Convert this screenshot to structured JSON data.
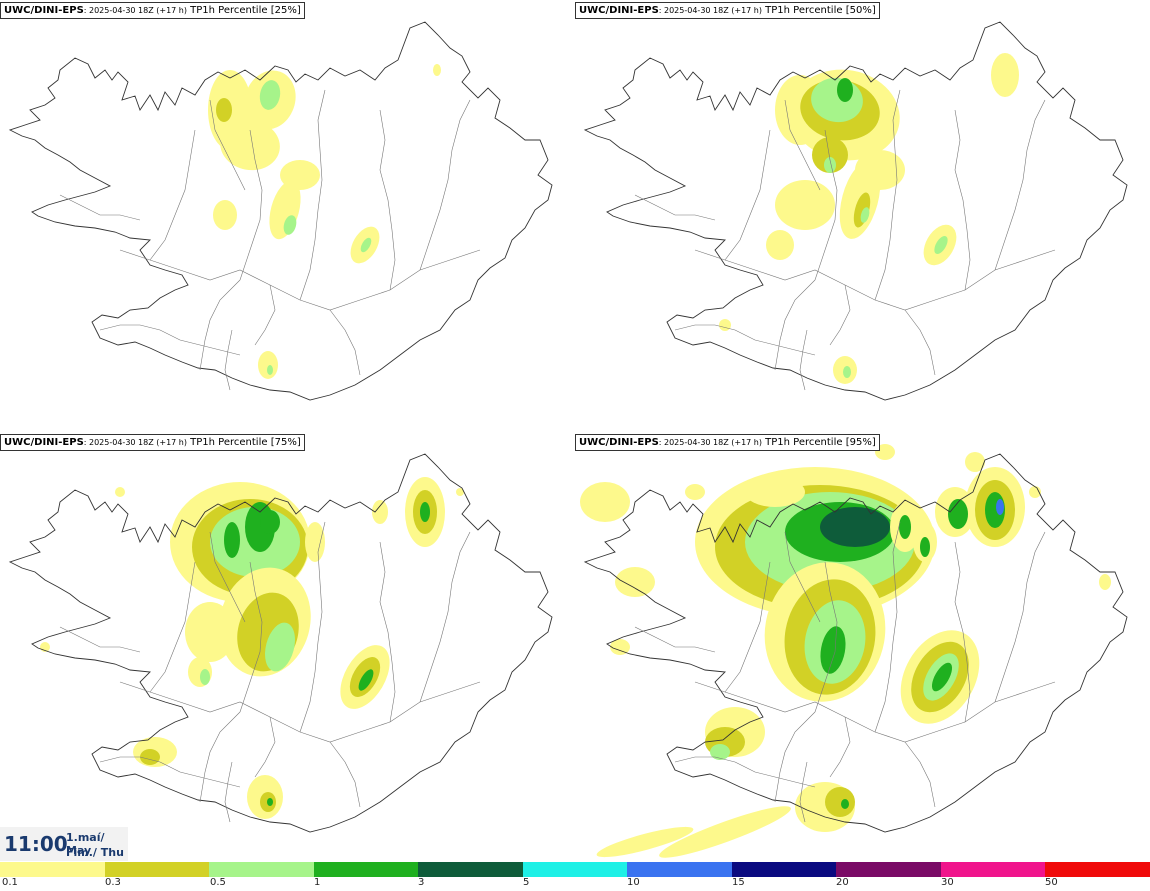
{
  "panels": [
    {
      "model": "UWC/DINI-EPS",
      "run": ": 2025-04-30 18Z (+17 h)",
      "field": " TP1h Percentile [25%]"
    },
    {
      "model": "UWC/DINI-EPS",
      "run": ": 2025-04-30 18Z (+17 h)",
      "field": " TP1h Percentile [50%]"
    },
    {
      "model": "UWC/DINI-EPS",
      "run": ": 2025-04-30 18Z (+17 h)",
      "field": " TP1h Percentile [75%]"
    },
    {
      "model": "UWC/DINI-EPS",
      "run": ": 2025-04-30 18Z (+17 h)",
      "field": " TP1h Percentile [95%]"
    }
  ],
  "valid_time": {
    "time": "11:00",
    "date_line1": "1.maí/ May",
    "date_line2": "Fim./ Thu"
  },
  "legend": {
    "ticks": [
      "0.1",
      "0.3",
      "0.5",
      "1",
      "3",
      "5",
      "10",
      "15",
      "20",
      "30",
      "50"
    ],
    "colors": [
      "#fdf98c",
      "#d2d126",
      "#a6f48a",
      "#1fb01f",
      "#0e5c3a",
      "#1ef0e6",
      "#3a73f0",
      "#0a0a80",
      "#7a0a66",
      "#f0148c",
      "#f00a0a"
    ]
  },
  "palette": {
    "coast": "#333333",
    "rivers": "#777777"
  }
}
